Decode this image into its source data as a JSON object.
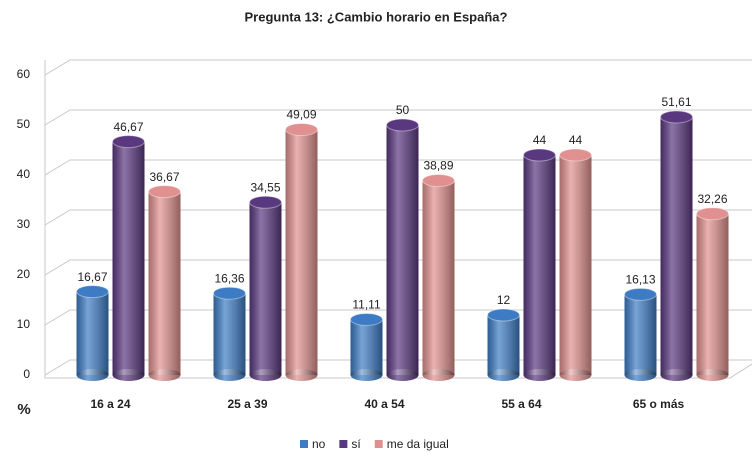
{
  "chart_data": {
    "type": "bar",
    "title": "Pregunta 13: ¿Cambio horario en España?",
    "y_label": "%",
    "categories": [
      "16 a 24",
      "25 a 39",
      "40 a 54",
      "55 a 64",
      "65 o más"
    ],
    "series": [
      {
        "name": "no",
        "color": "#3d7cc4",
        "values": [
          16.67,
          16.36,
          11.11,
          12,
          16.13
        ],
        "value_labels": [
          "16,67",
          "16,36",
          "11,11",
          "12",
          "16,13"
        ]
      },
      {
        "name": "sí",
        "color": "#5a3880",
        "values": [
          46.67,
          34.55,
          50,
          44,
          51.61
        ],
        "value_labels": [
          "46,67",
          "34,55",
          "50",
          "44",
          "51,61"
        ]
      },
      {
        "name": "me da igual",
        "color": "#e0918f",
        "values": [
          36.67,
          49.09,
          38.89,
          44,
          32.26
        ],
        "value_labels": [
          "36,67",
          "49,09",
          "38,89",
          "44",
          "32,26"
        ]
      }
    ],
    "ylim": [
      0,
      60
    ],
    "yticks": [
      0,
      10,
      20,
      30,
      40,
      50,
      60
    ],
    "grid": true,
    "legend": "bottom"
  }
}
